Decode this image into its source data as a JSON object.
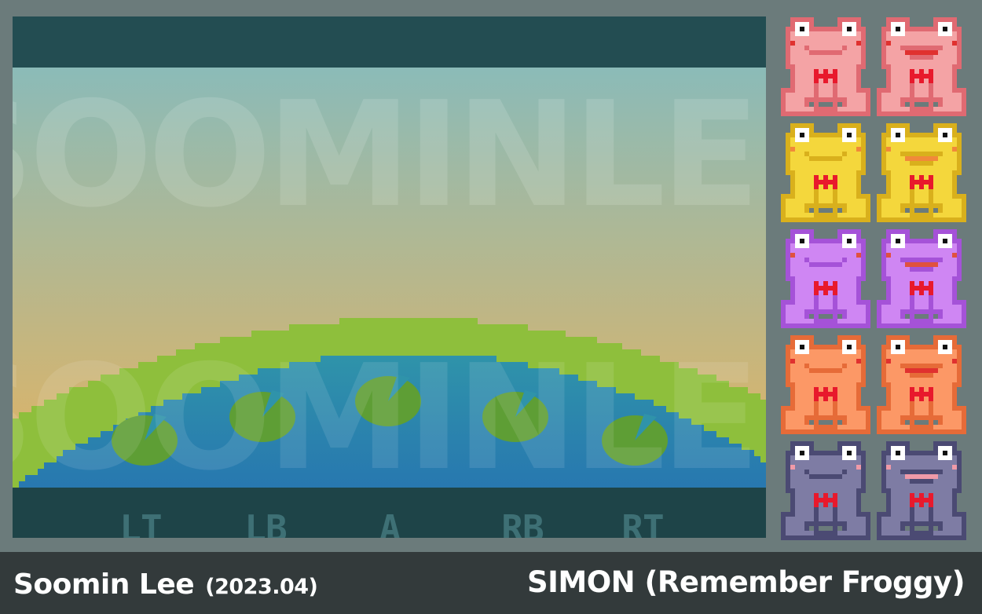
{
  "footer": {
    "author": "Soomin Lee",
    "date": "(2023.04)",
    "title": "SIMON (Remember Froggy)"
  },
  "scene": {
    "watermark": "SOOMINLEE",
    "buttons": [
      "LT",
      "LB",
      "A",
      "RB",
      "RT"
    ]
  },
  "colors": {
    "page_bg": "#6b7b7b",
    "top_bar": "#234d52",
    "bottom_bar": "#1e4448",
    "label_color": "#3e7075",
    "sky_top": "#8bbbb8",
    "sky_bottom": "#e3b361",
    "grass_light": "#8ebf3c",
    "grass_dark": "#6ea62e",
    "water_top": "#2f93aa",
    "water_bottom": "#2776b0",
    "lilypad": "#5e9e35",
    "footer_bg": "#333a3b"
  },
  "frogs": [
    {
      "name": "pink",
      "body": "#f4a3a5",
      "outline": "#e06a72",
      "blush": "#e0312f"
    },
    {
      "name": "yellow",
      "body": "#f4d73c",
      "outline": "#d9b01c",
      "blush": "#f1893a"
    },
    {
      "name": "purple",
      "body": "#cf86f3",
      "outline": "#a552d8",
      "blush": "#e0513f"
    },
    {
      "name": "orange",
      "body": "#fc9866",
      "outline": "#e66b38",
      "blush": "#e0312f"
    },
    {
      "name": "slate",
      "body": "#7e7ca4",
      "outline": "#4b4a73",
      "blush": "#f09aa8"
    }
  ]
}
